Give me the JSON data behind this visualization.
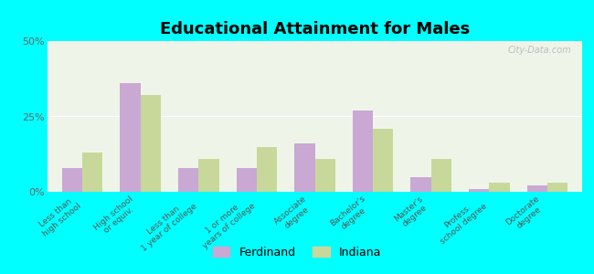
{
  "title": "Educational Attainment for Males",
  "categories": [
    "Less than\nhigh school",
    "High school\nor equiv.",
    "Less than\n1 year of college",
    "1 or more\nyears of college",
    "Associate\ndegree",
    "Bachelor's\ndegree",
    "Master's\ndegree",
    "Profess.\nschool degree",
    "Doctorate\ndegree"
  ],
  "ferdinand": [
    8,
    36,
    8,
    8,
    16,
    27,
    5,
    1,
    2
  ],
  "indiana": [
    13,
    32,
    11,
    15,
    11,
    21,
    11,
    3,
    3
  ],
  "ferdinand_color": "#c9a8d4",
  "indiana_color": "#c8d89a",
  "background_outer": "#00ffff",
  "background_inner": "#eef5e8",
  "ylim": [
    0,
    50
  ],
  "yticks": [
    0,
    25,
    50
  ],
  "ytick_labels": [
    "0%",
    "25%",
    "50%"
  ],
  "bar_width": 0.35,
  "legend_ferdinand": "Ferdinand",
  "legend_indiana": "Indiana",
  "watermark": "City-Data.com"
}
